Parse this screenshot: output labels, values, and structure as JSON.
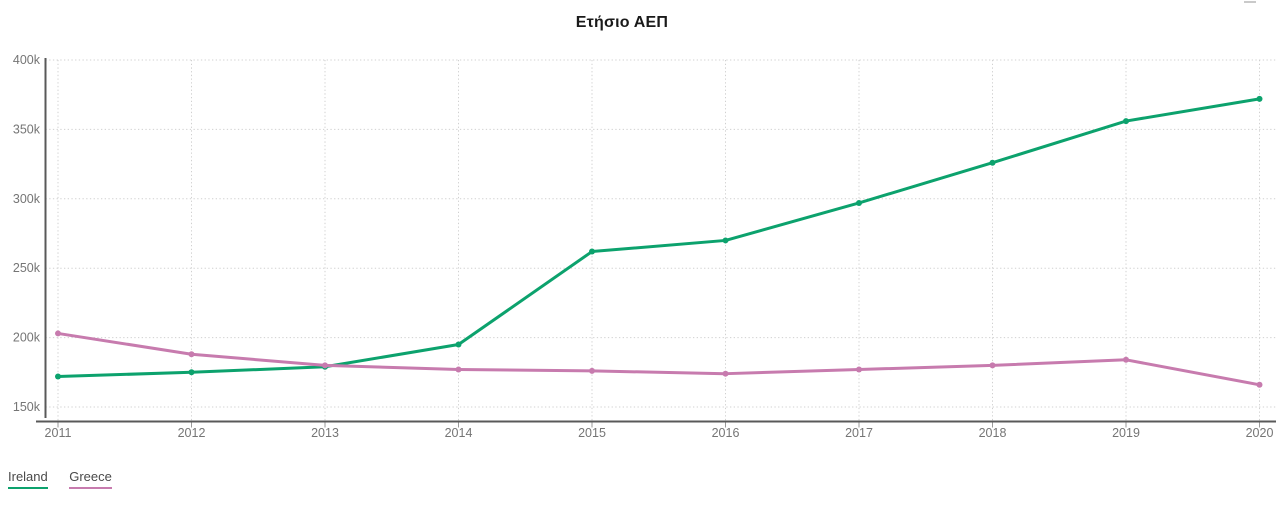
{
  "header": {
    "title": "Ετήσιο ΑΕΠ"
  },
  "toolbar": {
    "menu_icon": "hamburger-menu-icon"
  },
  "colors": {
    "background": "#ffffff",
    "axis_line": "#595959",
    "grid_line": "#d0d0d0",
    "tick_label": "#757575",
    "title_text": "#1a1a1a",
    "legend_text": "#4a4a4a",
    "ireland": "#0ca26d",
    "greece": "#c77bae"
  },
  "chart_data": {
    "type": "line",
    "title": "Ετήσιο ΑΕΠ",
    "x": [
      2011,
      2012,
      2013,
      2014,
      2015,
      2016,
      2017,
      2018,
      2019,
      2020
    ],
    "x_tick_labels": [
      "2011",
      "2012",
      "2013",
      "2014",
      "2015",
      "2016",
      "2017",
      "2018",
      "2019",
      "2020"
    ],
    "y_tick_values": [
      400,
      350,
      300,
      250,
      200,
      150
    ],
    "y_tick_labels": [
      "400k",
      "350k",
      "300k",
      "250k",
      "200k",
      "150k"
    ],
    "y_unit": "k",
    "ylim": [
      140,
      400
    ],
    "grid": "dotted",
    "legend_position": "bottom-left",
    "series": [
      {
        "name": "Ireland",
        "color": "#0ca26d",
        "values": [
          172,
          175,
          179,
          195,
          262,
          270,
          297,
          326,
          356,
          372
        ]
      },
      {
        "name": "Greece",
        "color": "#c77bae",
        "values": [
          203,
          188,
          180,
          177,
          176,
          174,
          177,
          180,
          184,
          166
        ]
      }
    ]
  }
}
